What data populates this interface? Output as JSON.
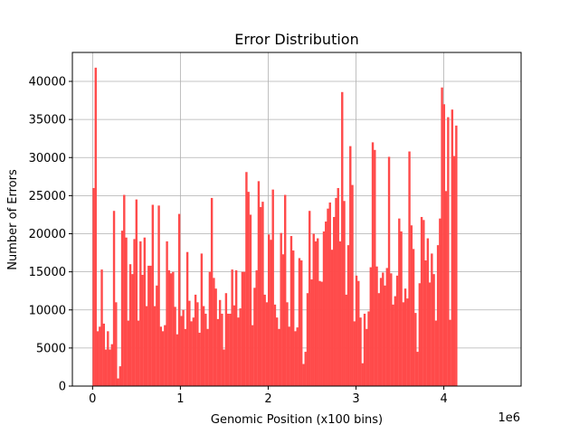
{
  "chart_data": {
    "type": "bar",
    "title": "Error Distribution",
    "xlabel": "Genomic Position (x100 bins)",
    "ylabel": "Number of Errors",
    "x_offset_label": "1e6",
    "x_scale": 1000000,
    "xlim": [
      -230000,
      4880000
    ],
    "ylim": [
      0,
      43800
    ],
    "grid": true,
    "color": "#ff4a4a",
    "xticks": [
      {
        "value": 0,
        "label": "0"
      },
      {
        "value": 1000000,
        "label": "1"
      },
      {
        "value": 2000000,
        "label": "2"
      },
      {
        "value": 3000000,
        "label": "3"
      },
      {
        "value": 4000000,
        "label": "4"
      }
    ],
    "yticks": [
      {
        "value": 0,
        "label": "0"
      },
      {
        "value": 5000,
        "label": "5000"
      },
      {
        "value": 10000,
        "label": "10000"
      },
      {
        "value": 15000,
        "label": "15000"
      },
      {
        "value": 20000,
        "label": "20000"
      },
      {
        "value": 25000,
        "label": "25000"
      },
      {
        "value": 30000,
        "label": "30000"
      },
      {
        "value": 35000,
        "label": "35000"
      },
      {
        "value": 40000,
        "label": "40000"
      }
    ],
    "bin_start": 0,
    "bin_width": 23200,
    "values": [
      26000,
      41800,
      7200,
      7800,
      15300,
      8200,
      4800,
      7200,
      4800,
      5500,
      23000,
      11000,
      1000,
      2600,
      20400,
      25100,
      19500,
      8600,
      16000,
      14700,
      19300,
      24500,
      8600,
      19000,
      14600,
      19500,
      10500,
      15800,
      15800,
      23800,
      10500,
      13200,
      23700,
      7800,
      7200,
      8000,
      19000,
      15200,
      14800,
      15000,
      10400,
      6800,
      22600,
      9200,
      10000,
      7500,
      17600,
      11200,
      8500,
      9000,
      12000,
      11000,
      7000,
      17400,
      10500,
      9500,
      7500,
      15000,
      24700,
      14200,
      12800,
      8800,
      11300,
      9500,
      4800,
      12200,
      9500,
      9500,
      15300,
      10600,
      15200,
      9000,
      10200,
      15000,
      15000,
      28100,
      25500,
      22500,
      8000,
      12900,
      15200,
      26900,
      23500,
      24200,
      12000,
      11000,
      19900,
      19200,
      25800,
      10700,
      9000,
      7500,
      20100,
      17300,
      25100,
      11000,
      7800,
      19700,
      17800,
      7200,
      7700,
      16800,
      16500,
      2900,
      4500,
      12200,
      23000,
      14000,
      20000,
      19000,
      19400,
      13800,
      13700,
      20300,
      21600,
      23300,
      24100,
      17900,
      22200,
      24700,
      26000,
      19000,
      38600,
      24300,
      12000,
      18500,
      31500,
      26400,
      8500,
      14500,
      13800,
      9000,
      3000,
      9500,
      7500,
      9800,
      15600,
      32000,
      31000,
      15700,
      12200,
      14200,
      14900,
      13200,
      15500,
      30100,
      14800,
      10700,
      11800,
      14500,
      22000,
      20300,
      11000,
      12800,
      11500,
      30800,
      21100,
      18000,
      9600,
      4500,
      13500,
      22200,
      21800,
      16500,
      19400,
      13600,
      17400,
      14700,
      8600,
      18500,
      22000,
      39200,
      37000,
      25600,
      35300,
      8700,
      36300,
      30200,
      34200
    ]
  }
}
